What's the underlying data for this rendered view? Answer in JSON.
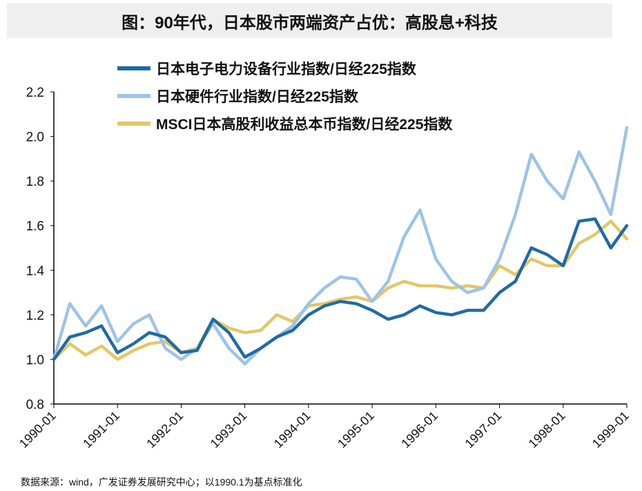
{
  "title": "图：90年代，日本股市两端资产占优：高股息+科技",
  "source": "数据来源：wind，广发证券发展研究中心；以1990.1为基点标准化",
  "chart_data": {
    "type": "line",
    "title": "图：90年代，日本股市两端资产占优：高股息+科技",
    "xlabel": "",
    "ylabel": "",
    "ylim": [
      0.8,
      2.2
    ],
    "yticks": [
      "0.8",
      "1.0",
      "1.2",
      "1.4",
      "1.6",
      "1.8",
      "2.0",
      "2.2"
    ],
    "xticks": [
      "1990-01",
      "1991-01",
      "1992-01",
      "1993-01",
      "1994-01",
      "1995-01",
      "1996-01",
      "1997-01",
      "1998-01",
      "1999-01"
    ],
    "x_note": "quarterly points from 1990-01 to 1999-01",
    "legend_position": "top",
    "series": [
      {
        "name": "日本电子电力设备行业指数/日经225指数",
        "color": "#1f6aa5",
        "values": [
          1.0,
          1.1,
          1.12,
          1.15,
          1.03,
          1.07,
          1.12,
          1.1,
          1.03,
          1.04,
          1.18,
          1.12,
          1.01,
          1.05,
          1.1,
          1.13,
          1.2,
          1.24,
          1.26,
          1.25,
          1.22,
          1.18,
          1.2,
          1.24,
          1.21,
          1.2,
          1.22,
          1.22,
          1.3,
          1.35,
          1.5,
          1.47,
          1.42,
          1.62,
          1.63,
          1.5,
          1.6
        ]
      },
      {
        "name": "日本硬件行业指数/日经225指数",
        "color": "#9dc3e6",
        "values": [
          1.0,
          1.25,
          1.15,
          1.24,
          1.08,
          1.16,
          1.2,
          1.05,
          1.0,
          1.05,
          1.16,
          1.05,
          0.98,
          1.05,
          1.1,
          1.15,
          1.25,
          1.32,
          1.37,
          1.36,
          1.26,
          1.35,
          1.55,
          1.67,
          1.45,
          1.35,
          1.3,
          1.32,
          1.45,
          1.65,
          1.92,
          1.8,
          1.72,
          1.93,
          1.8,
          1.65,
          2.04
        ]
      },
      {
        "name": "MSCI日本高股利收益总本币指数/日经225指数",
        "color": "#e2c766",
        "values": [
          1.0,
          1.07,
          1.02,
          1.06,
          1.0,
          1.04,
          1.07,
          1.08,
          1.03,
          1.05,
          1.18,
          1.14,
          1.12,
          1.13,
          1.2,
          1.17,
          1.24,
          1.25,
          1.27,
          1.28,
          1.26,
          1.32,
          1.35,
          1.33,
          1.33,
          1.32,
          1.33,
          1.32,
          1.42,
          1.38,
          1.45,
          1.42,
          1.42,
          1.52,
          1.56,
          1.62,
          1.54
        ]
      }
    ]
  }
}
